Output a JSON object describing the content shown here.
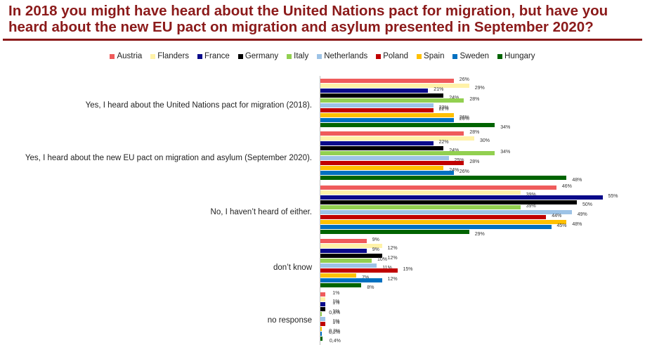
{
  "title": "In 2018 you might have heard about the United Nations pact for migration, but have you heard about the new EU pact on migration and asylum presented in September 2020?",
  "chart_data": {
    "type": "bar",
    "orientation": "horizontal",
    "title": "In 2018 you might have heard about the United Nations pact for migration, but have you heard about the new EU pact on migration and asylum presented in September 2020?",
    "xlabel": "",
    "ylabel": "",
    "legend_position": "top",
    "grid": false,
    "categories": [
      "Yes, I heard about the United Nations pact for migration (2018).",
      "Yes, I heard about the new EU pact on migration and asylum (September 2020).",
      "No, I haven’t heard of either.",
      "don’t know",
      "no response"
    ],
    "series": [
      {
        "name": "Austria",
        "color": "#ef5b5b",
        "values": [
          26,
          28,
          46,
          9,
          1
        ],
        "labels": [
          "26%",
          "28%",
          "46%",
          "9%",
          "1%"
        ]
      },
      {
        "name": "Flanders",
        "color": "#fff2a8",
        "values": [
          29,
          30,
          39,
          12,
          1
        ],
        "labels": [
          "29%",
          "30%",
          "39%",
          "12%",
          "1%"
        ]
      },
      {
        "name": "France",
        "color": "#0a0a8a",
        "values": [
          21,
          22,
          55,
          9,
          1
        ],
        "labels": [
          "21%",
          "22%",
          "55%",
          "9%",
          "1%"
        ]
      },
      {
        "name": "Germany",
        "color": "#000000",
        "values": [
          24,
          24,
          50,
          12,
          1
        ],
        "labels": [
          "24%",
          "24%",
          "50%",
          "12%",
          "1%"
        ]
      },
      {
        "name": "Italy",
        "color": "#92d050",
        "values": [
          28,
          34,
          39,
          10,
          0.3
        ],
        "labels": [
          "28%",
          "34%",
          "39%",
          "10%",
          "0,3%"
        ]
      },
      {
        "name": "Netherlands",
        "color": "#9dc3e6",
        "values": [
          22,
          25,
          49,
          11,
          1
        ],
        "labels": [
          "22%",
          "25%",
          "49%",
          "11%",
          "1%"
        ]
      },
      {
        "name": "Poland",
        "color": "#c00000",
        "values": [
          22,
          28,
          44,
          15,
          1
        ],
        "labels": [
          "22%",
          "28%",
          "44%",
          "15%",
          "1%"
        ]
      },
      {
        "name": "Spain",
        "color": "#ffc000",
        "values": [
          26,
          24,
          48,
          7,
          0.3
        ],
        "labels": [
          "26%",
          "24%",
          "48%",
          "7%",
          "0,3%"
        ]
      },
      {
        "name": "Sweden",
        "color": "#0070c0",
        "values": [
          26,
          26,
          45,
          12,
          0.2
        ],
        "labels": [
          "26%",
          "26%",
          "45%",
          "12%",
          "0,2%"
        ]
      },
      {
        "name": "Hungary",
        "color": "#006400",
        "values": [
          34,
          48,
          29,
          8,
          0.4
        ],
        "labels": [
          "34%",
          "48%",
          "29%",
          "8%",
          "0,4%"
        ]
      }
    ],
    "xlim": [
      0,
      60
    ]
  }
}
